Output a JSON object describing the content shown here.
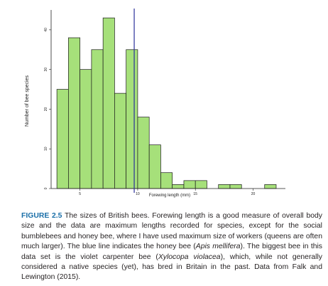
{
  "chart_data": {
    "type": "bar",
    "bin_width": 1,
    "bins": [
      {
        "x0": 3,
        "x1": 4,
        "count": 25
      },
      {
        "x0": 4,
        "x1": 5,
        "count": 38
      },
      {
        "x0": 5,
        "x1": 6,
        "count": 30
      },
      {
        "x0": 6,
        "x1": 7,
        "count": 35
      },
      {
        "x0": 7,
        "x1": 8,
        "count": 43
      },
      {
        "x0": 8,
        "x1": 9,
        "count": 24
      },
      {
        "x0": 9,
        "x1": 10,
        "count": 35
      },
      {
        "x0": 10,
        "x1": 11,
        "count": 18
      },
      {
        "x0": 11,
        "x1": 12,
        "count": 11
      },
      {
        "x0": 12,
        "x1": 13,
        "count": 4
      },
      {
        "x0": 13,
        "x1": 14,
        "count": 1
      },
      {
        "x0": 14,
        "x1": 15,
        "count": 2
      },
      {
        "x0": 15,
        "x1": 16,
        "count": 2
      },
      {
        "x0": 16,
        "x1": 17,
        "count": 0
      },
      {
        "x0": 17,
        "x1": 18,
        "count": 1
      },
      {
        "x0": 18,
        "x1": 19,
        "count": 1
      },
      {
        "x0": 19,
        "x1": 20,
        "count": 0
      },
      {
        "x0": 20,
        "x1": 21,
        "count": 0
      },
      {
        "x0": 21,
        "x1": 22,
        "count": 1
      }
    ],
    "xlabel": "Forewing length (mm)",
    "ylabel": "Number of bee species",
    "xlim": [
      2.5,
      22.8
    ],
    "ylim": [
      0,
      45
    ],
    "xticks": [
      5,
      10,
      15,
      20
    ],
    "yticks": [
      0,
      10,
      20,
      30,
      40
    ],
    "reference_line": {
      "x": 9.7,
      "color": "#2a2f9a"
    },
    "bar_color": "#a6e07a",
    "bar_edge_color": "#1a1a1a",
    "grid": false
  },
  "caption": {
    "label": "FIGURE 2.5",
    "part1": " The sizes of British bees. Forewing length is a good measure of overall body size and the data are maximum lengths recorded for species, except for the social bumblebees and honey bee, where I have used maximum size of workers (queens are often much larger). The blue line indicates the honey bee (",
    "species1": "Apis mellifera",
    "part2": "). The biggest bee in this data set is the violet carpenter bee (",
    "species2": "Xylocopa violacea",
    "part3": "), which, while not generally considered a native species (yet), has bred in Britain in the past. Data from Falk and Lewington (2015)."
  }
}
